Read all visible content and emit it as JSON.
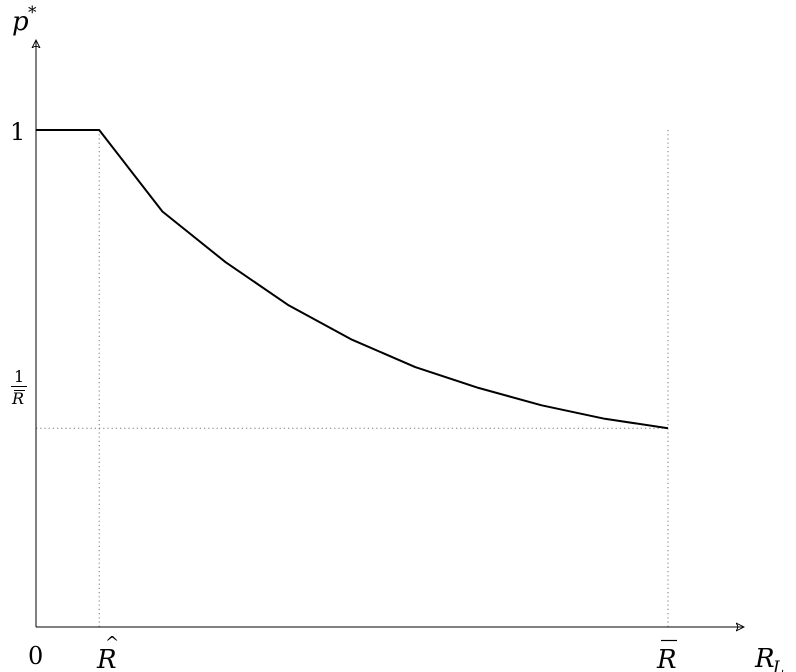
{
  "chart_data": {
    "type": "line",
    "xlabel": "R",
    "xlabel_sub": "L",
    "ylabel": "p",
    "ylabel_sup": "*",
    "origin_label": "0",
    "y_ticks": {
      "one": "1",
      "low_num": "1",
      "low_den": "R"
    },
    "x_ticks": {
      "r_hat": "R",
      "r_bar": "R"
    },
    "xlim": [
      0,
      1.06
    ],
    "ylim": [
      0,
      1.2
    ],
    "reference": {
      "r_hat": 0.1,
      "r_bar": 1.0,
      "p_low": 0.4
    },
    "series": [
      {
        "x": [
          0,
          0.1,
          0.1,
          0.2,
          0.3,
          0.4,
          0.5,
          0.6,
          0.7,
          0.8,
          0.9,
          1.0
        ],
        "y": [
          1,
          1,
          1,
          0.836,
          0.734,
          0.647,
          0.578,
          0.523,
          0.481,
          0.446,
          0.419,
          0.4
        ]
      }
    ],
    "grid": false,
    "legend": "none",
    "line_color": "#000000",
    "guide_color": "#777777"
  }
}
